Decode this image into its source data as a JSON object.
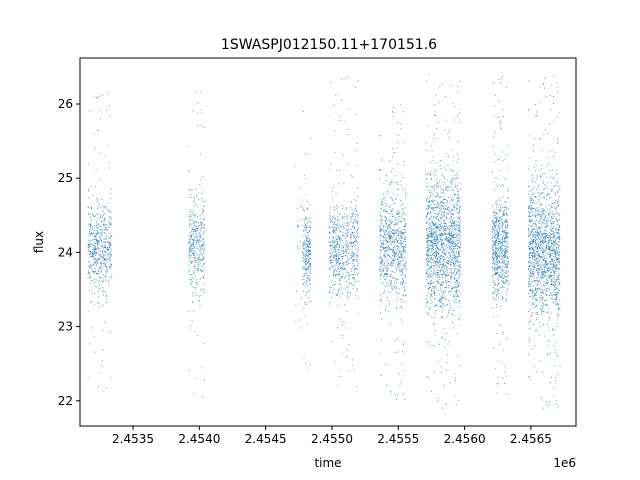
{
  "chart_data": {
    "type": "scatter",
    "title": "1SWASPJ012150.11+170151.6",
    "xlabel": "time",
    "ylabel": "flux",
    "x_offset_label": "1e6",
    "xlim": [
      2.4531,
      2.45684
    ],
    "ylim": [
      21.66,
      26.62
    ],
    "xticks": [
      2.4535,
      2.454,
      2.4545,
      2.455,
      2.4555,
      2.456,
      2.4565
    ],
    "xtick_labels": [
      "2.4535",
      "2.4540",
      "2.4545",
      "2.4550",
      "2.4555",
      "2.4560",
      "2.4565"
    ],
    "yticks": [
      22,
      23,
      24,
      25,
      26
    ],
    "ytick_labels": [
      "22",
      "23",
      "24",
      "25",
      "26"
    ],
    "grid": false,
    "legend": "none",
    "marker_color": "#1f77b4",
    "series": [
      {
        "clusters": [
          {
            "x_center": 2.45325,
            "x_halfwidth": 9e-05,
            "y_center": 24.05,
            "y_core_sd": 0.28,
            "y_min": 21.95,
            "y_max": 26.2,
            "density": 560
          },
          {
            "x_center": 2.45398,
            "x_halfwidth": 6e-05,
            "y_center": 24.1,
            "y_core_sd": 0.35,
            "y_min": 22.0,
            "y_max": 26.3,
            "density": 380
          },
          {
            "x_center": 2.45477,
            "x_halfwidth": 5e-05,
            "y_center": 24.0,
            "y_core_sd": 0.55,
            "y_min": 21.9,
            "y_max": 25.8,
            "density": 40
          },
          {
            "x_center": 2.45481,
            "x_halfwidth": 3e-05,
            "y_center": 24.0,
            "y_core_sd": 0.25,
            "y_min": 22.4,
            "y_max": 25.9,
            "density": 240
          },
          {
            "x_center": 2.45509,
            "x_halfwidth": 0.00011,
            "y_center": 24.05,
            "y_core_sd": 0.32,
            "y_min": 22.1,
            "y_max": 26.4,
            "density": 650
          },
          {
            "x_center": 2.45546,
            "x_halfwidth": 0.0001,
            "y_center": 24.1,
            "y_core_sd": 0.36,
            "y_min": 22.0,
            "y_max": 26.0,
            "density": 760
          },
          {
            "x_center": 2.45584,
            "x_halfwidth": 0.00013,
            "y_center": 24.1,
            "y_core_sd": 0.45,
            "y_min": 21.9,
            "y_max": 26.4,
            "density": 1500
          },
          {
            "x_center": 2.45627,
            "x_halfwidth": 6e-05,
            "y_center": 24.1,
            "y_core_sd": 0.35,
            "y_min": 22.0,
            "y_max": 26.4,
            "density": 680
          },
          {
            "x_center": 2.4566,
            "x_halfwidth": 0.00012,
            "y_center": 24.0,
            "y_core_sd": 0.45,
            "y_min": 21.9,
            "y_max": 26.4,
            "density": 1400
          }
        ]
      }
    ]
  }
}
